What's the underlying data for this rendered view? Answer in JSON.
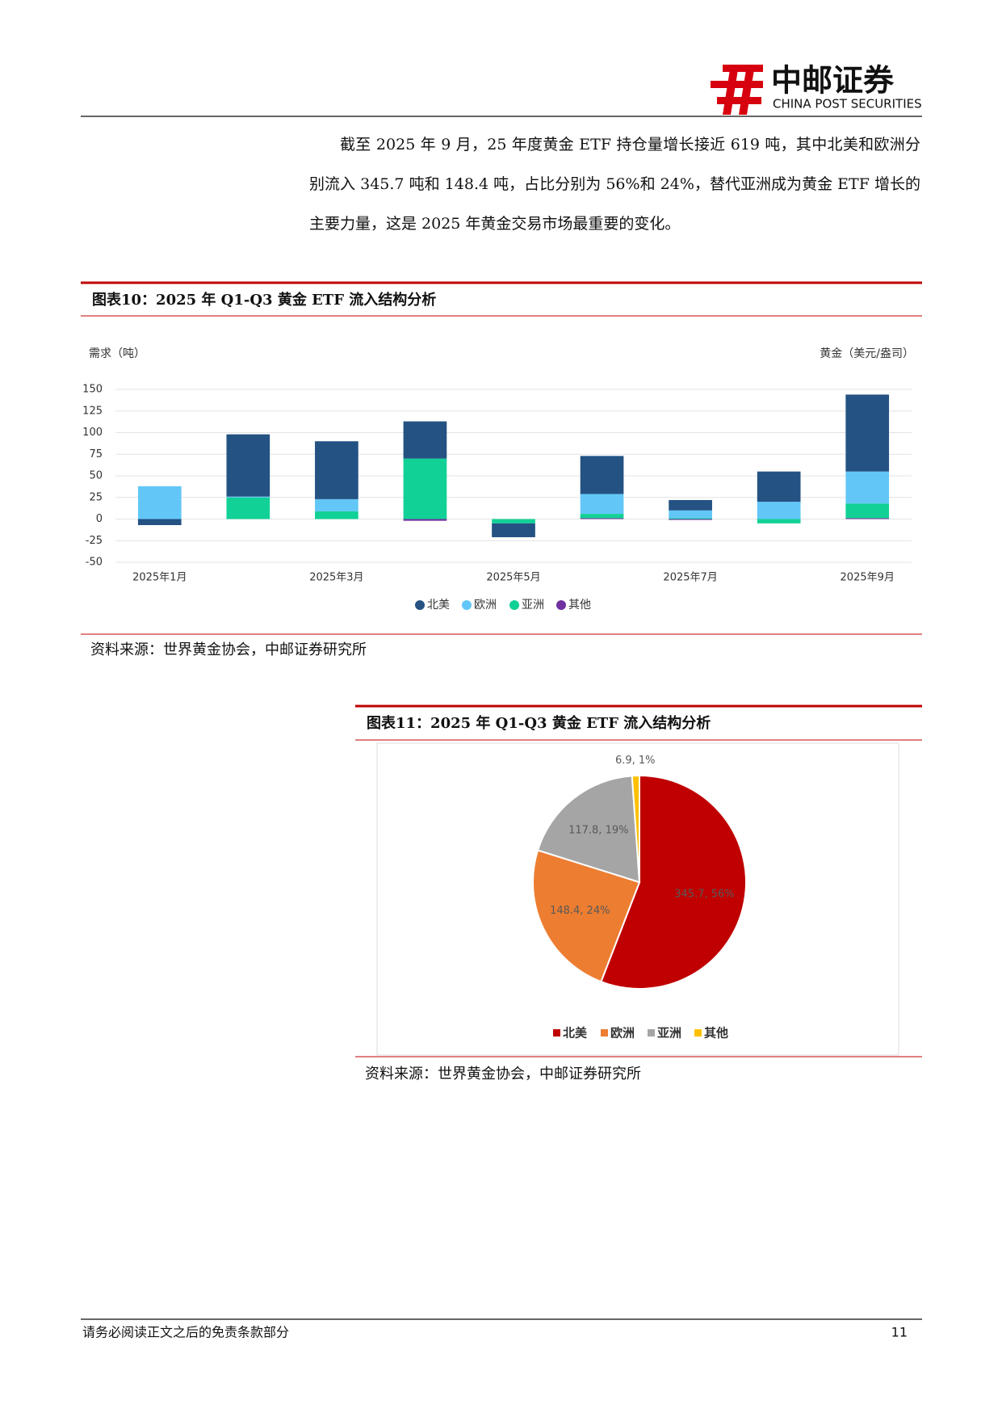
{
  "header": {
    "brand": "中邮证券",
    "brand_en": "CHINA POST SECURITIES"
  },
  "paragraph": "截至 2025 年 9 月，25 年度黄金 ETF 持仓量增长接近 619 吨，其中北美和欧洲分别流入 345.7 吨和 148.4 吨，占比分别为 56%和 24%，替代亚洲成为黄金 ETF 增长的主要力量，这是 2025 年黄金交易市场最重要的变化。",
  "chart_data": [
    {
      "type": "bar",
      "title": "图表10：2025 年 Q1-Q3 黄金 ETF 流入结构分析",
      "y_label": "需求（吨）",
      "y2_label": "黄金（美元/盎司）",
      "categories": [
        "2025年1月",
        null,
        "2025年3月",
        null,
        "2025年5月",
        null,
        "2025年7月",
        null,
        "2025年9月"
      ],
      "series": [
        {
          "name": "北美",
          "color": "#245283",
          "values": [
            -7,
            72,
            67,
            43,
            -16,
            44,
            12,
            35,
            89
          ]
        },
        {
          "name": "欧洲",
          "color": "#62c7f7",
          "values": [
            38,
            1,
            14,
            0,
            0,
            23,
            9,
            20,
            37
          ]
        },
        {
          "name": "亚洲",
          "color": "#12d196",
          "values": [
            0,
            25,
            9,
            70,
            -5,
            5,
            1,
            -5,
            17
          ]
        },
        {
          "name": "其他",
          "color": "#7030a0",
          "values": [
            0,
            0,
            0,
            -2,
            0,
            1,
            -1,
            0,
            1
          ]
        }
      ],
      "ylim": [
        -50,
        150
      ],
      "yticks": [
        -50,
        -25,
        0,
        25,
        50,
        75,
        100,
        125,
        150
      ],
      "grid": true,
      "source": "资料来源：世界黄金协会，中邮证券研究所"
    },
    {
      "type": "pie",
      "title": "图表11：2025 年 Q1-Q3 黄金 ETF 流入结构分析",
      "categories": [
        "北美",
        "欧洲",
        "亚洲",
        "其他"
      ],
      "values": [
        345.7,
        148.4,
        117.8,
        6.9
      ],
      "value_labels": [
        "345.7, 56%",
        "148.4, 24%",
        "117.8, 19%",
        "6.9, 1%"
      ],
      "colors": [
        "#c00000",
        "#ed7d31",
        "#a5a5a5",
        "#ffc000"
      ],
      "source": "资料来源：世界黄金协会，中邮证券研究所"
    }
  ],
  "footer": {
    "disclaimer": "请务必阅读正文之后的免责条款部分",
    "page": "11"
  }
}
